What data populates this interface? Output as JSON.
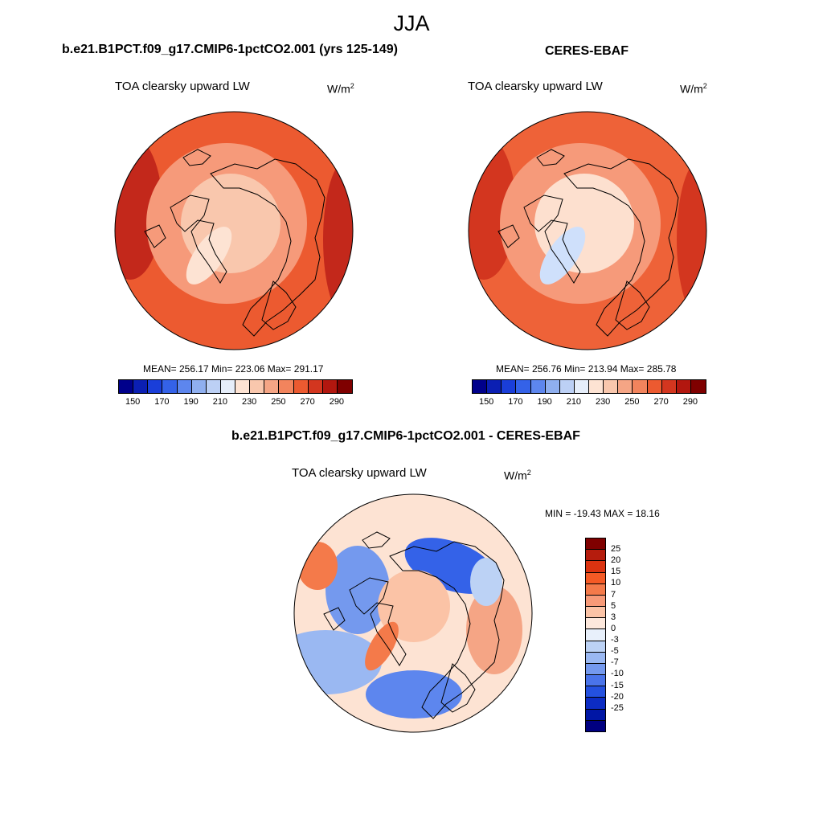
{
  "season": "JJA",
  "panels": [
    {
      "title": "b.e21.B1PCT.f09_g17.CMIP6-1pctCO2.001 (yrs 125-149)",
      "variable": "TOA clearsky upward LW",
      "units": "W/m",
      "units_exp": "2",
      "stats": "MEAN= 256.17  Min= 223.06  Max= 291.17",
      "colors": {
        "pole": "#f9c7ad",
        "greenland": "#fde3d3",
        "mid": "#f69a7a",
        "outer": "#ec5a30",
        "hot": "#c3281b"
      }
    },
    {
      "title": "CERES-EBAF",
      "variable": "TOA clearsky upward LW",
      "units": "W/m",
      "units_exp": "2",
      "stats": "MEAN= 256.76  Min= 213.94  Max= 285.78",
      "colors": {
        "pole": "#fde0cf",
        "greenland": "#cfe0fb",
        "mid": "#f69a7a",
        "outer": "#ee6238",
        "hot": "#d3361f"
      }
    }
  ],
  "abs_colorbar": {
    "colors": [
      "#00008b",
      "#0b1fb3",
      "#1a3ed9",
      "#3462e8",
      "#5d86ee",
      "#8fafef",
      "#bcd0f5",
      "#e6eefa",
      "#fde3d3",
      "#f9c7ad",
      "#f5a585",
      "#f2845d",
      "#ec5a30",
      "#d3361f",
      "#b2170f",
      "#7f0000"
    ],
    "labels": [
      "150",
      "170",
      "190",
      "210",
      "230",
      "250",
      "270",
      "290"
    ]
  },
  "diff_panel": {
    "title": "b.e21.B1PCT.f09_g17.CMIP6-1pctCO2.001 - CERES-EBAF",
    "variable": "TOA clearsky upward LW",
    "units": "W/m",
    "units_exp": "2",
    "minmax": "MIN = -19.43 MAX =  18.16"
  },
  "diff_colorbar": {
    "colors": [
      "#7f0000",
      "#b51c0d",
      "#dc3310",
      "#f55a25",
      "#f47a4a",
      "#f79a78",
      "#fbc3a6",
      "#fde8dc",
      "#e8f0fb",
      "#bcd2f5",
      "#9ab8f2",
      "#7499ee",
      "#4a74ea",
      "#2451e0",
      "#0c2cc4",
      "#0016a5",
      "#000080"
    ],
    "labels": [
      "25",
      "20",
      "15",
      "10",
      "7",
      "5",
      "3",
      "0",
      "-3",
      "-5",
      "-7",
      "-10",
      "-15",
      "-20",
      "-25"
    ]
  }
}
